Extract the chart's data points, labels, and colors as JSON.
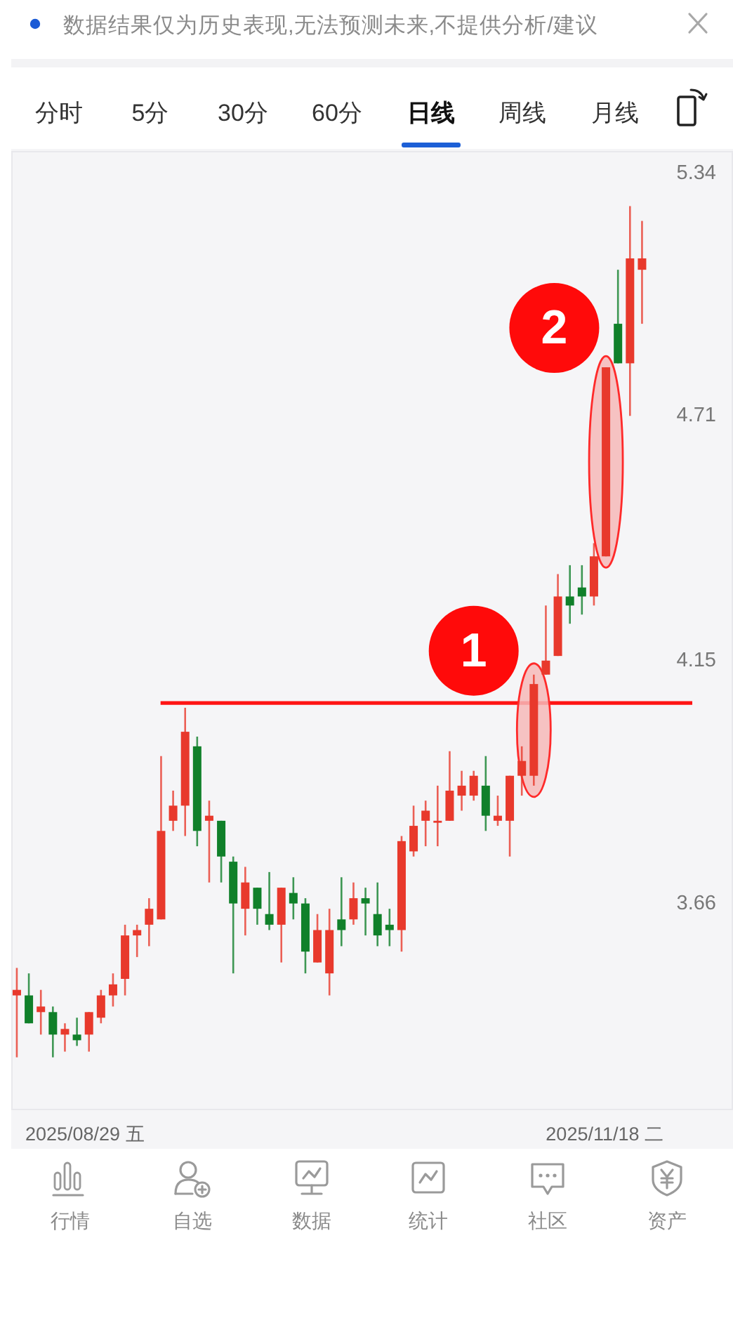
{
  "chart_data": {
    "type": "candlestick",
    "categories": [
      null,
      null,
      null,
      null,
      null,
      null,
      null,
      null,
      null,
      null,
      null,
      null,
      null,
      null,
      null,
      null,
      null,
      null,
      null,
      null,
      null,
      null,
      null,
      null,
      null,
      null,
      null,
      null,
      null,
      null,
      null,
      null,
      null,
      null,
      null,
      null,
      null,
      null,
      null,
      null,
      null,
      null,
      null,
      null,
      null,
      null,
      null,
      null,
      null,
      null,
      null,
      null,
      null
    ],
    "ohlc": [
      [
        3.49,
        3.54,
        3.38,
        3.5
      ],
      [
        3.49,
        3.53,
        3.44,
        3.44
      ],
      [
        3.46,
        3.5,
        3.42,
        3.47
      ],
      [
        3.46,
        3.47,
        3.38,
        3.42
      ],
      [
        3.42,
        3.44,
        3.39,
        3.43
      ],
      [
        3.42,
        3.45,
        3.4,
        3.41
      ],
      [
        3.42,
        3.46,
        3.39,
        3.46
      ],
      [
        3.45,
        3.5,
        3.44,
        3.49
      ],
      [
        3.49,
        3.53,
        3.47,
        3.51
      ],
      [
        3.52,
        3.62,
        3.49,
        3.6
      ],
      [
        3.6,
        3.62,
        3.56,
        3.61
      ],
      [
        3.62,
        3.67,
        3.58,
        3.65
      ],
      [
        3.63,
        3.95,
        3.63,
        3.8
      ],
      [
        3.82,
        3.88,
        3.8,
        3.85
      ],
      [
        3.85,
        4.05,
        3.79,
        4.0
      ],
      [
        3.97,
        3.99,
        3.77,
        3.8
      ],
      [
        3.82,
        3.86,
        3.7,
        3.83
      ],
      [
        3.82,
        3.82,
        3.7,
        3.75
      ],
      [
        3.74,
        3.75,
        3.53,
        3.66
      ],
      [
        3.65,
        3.73,
        3.6,
        3.7
      ],
      [
        3.69,
        3.69,
        3.62,
        3.65
      ],
      [
        3.64,
        3.72,
        3.61,
        3.62
      ],
      [
        3.62,
        3.69,
        3.55,
        3.69
      ],
      [
        3.68,
        3.71,
        3.63,
        3.66
      ],
      [
        3.66,
        3.67,
        3.53,
        3.57
      ],
      [
        3.55,
        3.64,
        3.55,
        3.61
      ],
      [
        3.53,
        3.65,
        3.49,
        3.61
      ],
      [
        3.63,
        3.71,
        3.58,
        3.61
      ],
      [
        3.63,
        3.7,
        3.62,
        3.67
      ],
      [
        3.67,
        3.69,
        3.6,
        3.66
      ],
      [
        3.64,
        3.7,
        3.58,
        3.6
      ],
      [
        3.62,
        3.65,
        3.58,
        3.61
      ],
      [
        3.61,
        3.79,
        3.57,
        3.78
      ],
      [
        3.76,
        3.85,
        3.75,
        3.81
      ],
      [
        3.82,
        3.86,
        3.77,
        3.84
      ],
      [
        3.82,
        3.89,
        3.77,
        3.82
      ],
      [
        3.82,
        3.96,
        3.82,
        3.88
      ],
      [
        3.87,
        3.92,
        3.84,
        3.89
      ],
      [
        3.87,
        3.92,
        3.86,
        3.91
      ],
      [
        3.89,
        3.95,
        3.8,
        3.83
      ],
      [
        3.82,
        3.87,
        3.81,
        3.83
      ],
      [
        3.82,
        3.91,
        3.75,
        3.91
      ],
      [
        3.91,
        3.97,
        3.87,
        3.94
      ],
      [
        3.91,
        4.12,
        3.89,
        4.1
      ],
      [
        4.12,
        4.27,
        4.12,
        4.15
      ],
      [
        4.16,
        4.34,
        4.16,
        4.29
      ],
      [
        4.29,
        4.36,
        4.23,
        4.27
      ],
      [
        4.31,
        4.36,
        4.25,
        4.29
      ],
      [
        4.29,
        4.41,
        4.27,
        4.38
      ],
      [
        4.38,
        4.83,
        4.38,
        4.83
      ],
      [
        4.94,
        5.08,
        4.84,
        4.84
      ],
      [
        4.84,
        5.25,
        4.71,
        5.11
      ],
      [
        5.08,
        5.21,
        4.94,
        5.11
      ]
    ],
    "colors": [
      "#e8392c",
      "#10802a",
      "#e8392c",
      "#10802a",
      "#e8392c",
      "#10802a",
      "#e8392c",
      "#e8392c",
      "#e8392c",
      "#e8392c",
      "#e8392c",
      "#e8392c",
      "#e8392c",
      "#e8392c",
      "#e8392c",
      "#10802a",
      "#e8392c",
      "#10802a",
      "#10802a",
      "#e8392c",
      "#10802a",
      "#10802a",
      "#e8392c",
      "#10802a",
      "#10802a",
      "#e8392c",
      "#e8392c",
      "#10802a",
      "#e8392c",
      "#10802a",
      "#10802a",
      "#10802a",
      "#e8392c",
      "#e8392c",
      "#e8392c",
      "#e8392c",
      "#e8392c",
      "#e8392c",
      "#e8392c",
      "#10802a",
      "#e8392c",
      "#e8392c",
      "#e8392c",
      "#e8392c",
      "#e8392c",
      "#e8392c",
      "#10802a",
      "#10802a",
      "#e8392c",
      "#e8392c",
      "#10802a",
      "#e8392c",
      "#e8392c"
    ],
    "log": true,
    "ylim": [
      3.29,
      5.4
    ],
    "yticks": [
      3.66,
      4.15,
      4.71,
      5.34
    ],
    "ref_lines": [
      {
        "axis": "y",
        "value": 4.06,
        "color": "#ff1414"
      }
    ],
    "annotations": [
      "数据结果仅为历史表现,无法预测未来,不提供分析/建议",
      "分时",
      "5分",
      "30分",
      "60分",
      "日线",
      "周线",
      "月线",
      "1",
      "2",
      "2025/08/29 五",
      "2025/11/18 二",
      "行情",
      "自选",
      "数据",
      "统计",
      "社区",
      "资产"
    ]
  }
}
